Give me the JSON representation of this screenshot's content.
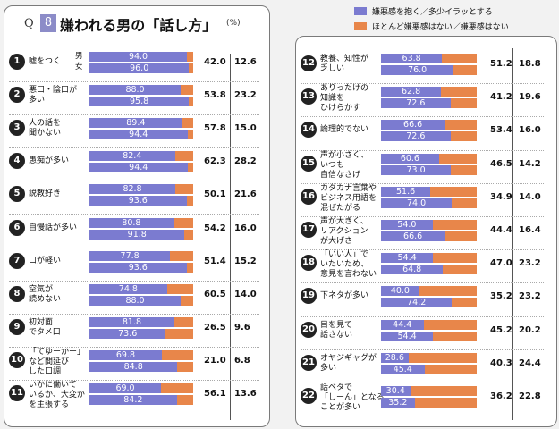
{
  "header": {
    "q": "Q",
    "qnum": "8",
    "title": "嫌われる男の「話し方」",
    "unit": "(%)",
    "male": "男",
    "female": "女"
  },
  "legend": {
    "primary": {
      "label": "嫌悪感を抱く／多少イラッとする",
      "color": "#7b7bd0"
    },
    "secondary": {
      "label": "ほとんど嫌悪感はない／嫌悪感はない",
      "color": "#e8864a"
    }
  },
  "chart_data": {
    "type": "bar",
    "stacked": true,
    "xlim": [
      0,
      100
    ],
    "items": [
      {
        "no": "1",
        "label": "嘘をつく",
        "male": 94.0,
        "female": 96.0,
        "diff": "42.0",
        "ratio": "12.6"
      },
      {
        "no": "2",
        "label": "悪口・陰口が\n多い",
        "male": 88.0,
        "female": 95.8,
        "diff": "53.8",
        "ratio": "23.2"
      },
      {
        "no": "3",
        "label": "人の話を\n聞かない",
        "male": 89.4,
        "female": 94.4,
        "diff": "57.8",
        "ratio": "15.0"
      },
      {
        "no": "4",
        "label": "愚痴が多い",
        "male": 82.4,
        "female": 94.4,
        "diff": "62.3",
        "ratio": "28.2"
      },
      {
        "no": "5",
        "label": "説教好き",
        "male": 82.8,
        "female": 93.6,
        "diff": "50.1",
        "ratio": "21.6"
      },
      {
        "no": "6",
        "label": "自慢話が多い",
        "male": 80.8,
        "female": 91.8,
        "diff": "54.2",
        "ratio": "16.0"
      },
      {
        "no": "7",
        "label": "口が軽い",
        "male": 77.8,
        "female": 93.6,
        "diff": "51.4",
        "ratio": "15.2"
      },
      {
        "no": "8",
        "label": "空気が\n読めない",
        "male": 74.8,
        "female": 88.0,
        "diff": "60.5",
        "ratio": "14.0"
      },
      {
        "no": "9",
        "label": "初対面\nでタメ口",
        "male": 81.8,
        "female": 73.6,
        "diff": "26.5",
        "ratio": "9.6"
      },
      {
        "no": "10",
        "label": "「てゆーかー」\nなど間延び\nした口調",
        "male": 69.8,
        "female": 84.8,
        "diff": "21.0",
        "ratio": "6.8"
      },
      {
        "no": "11",
        "label": "いかに働いて\nいるか、大変か\nを主張する",
        "male": 69.0,
        "female": 84.2,
        "diff": "56.1",
        "ratio": "13.6"
      },
      {
        "no": "12",
        "label": "教養、知性が\n乏しい",
        "male": 63.8,
        "female": 76.0,
        "diff": "51.2",
        "ratio": "18.8"
      },
      {
        "no": "13",
        "label": "ありったけの\n知識を\nひけらかす",
        "male": 62.8,
        "female": 72.6,
        "diff": "41.2",
        "ratio": "19.6"
      },
      {
        "no": "14",
        "label": "論理的でない",
        "male": 66.6,
        "female": 72.6,
        "diff": "53.4",
        "ratio": "16.0"
      },
      {
        "no": "15",
        "label": "声が小さく、\nいつも\n自信なさげ",
        "male": 60.6,
        "female": 73.0,
        "diff": "46.5",
        "ratio": "14.2"
      },
      {
        "no": "16",
        "label": "カタカナ言葉や\nビジネス用語を\n混ぜたがる",
        "male": 51.6,
        "female": 74.0,
        "diff": "34.9",
        "ratio": "14.0"
      },
      {
        "no": "17",
        "label": "声が大きく、\nリアクション\nが大げさ",
        "male": 54.0,
        "female": 66.6,
        "diff": "44.4",
        "ratio": "16.4"
      },
      {
        "no": "18",
        "label": "「いい人」で\nいたいため、\n意見を言わない",
        "male": 54.4,
        "female": 64.8,
        "diff": "47.0",
        "ratio": "23.2"
      },
      {
        "no": "19",
        "label": "下ネタが多い",
        "male": 40.0,
        "female": 74.2,
        "diff": "35.2",
        "ratio": "23.2"
      },
      {
        "no": "20",
        "label": "目を見て\n話さない",
        "male": 44.4,
        "female": 54.4,
        "diff": "45.2",
        "ratio": "20.2"
      },
      {
        "no": "21",
        "label": "オヤジギャグが\n多い",
        "male": 28.6,
        "female": 45.4,
        "diff": "40.3",
        "ratio": "24.4"
      },
      {
        "no": "22",
        "label": "話ベタで\n「しーん」となる\nことが多い",
        "male": 30.4,
        "female": 35.2,
        "diff": "36.2",
        "ratio": "22.8"
      }
    ]
  }
}
